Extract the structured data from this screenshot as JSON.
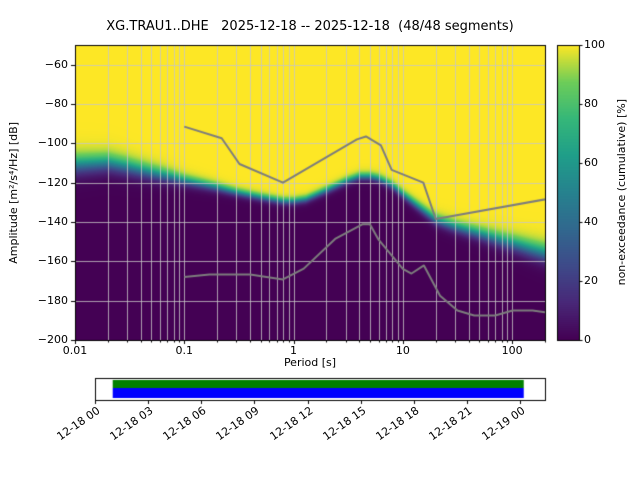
{
  "chart_data": {
    "type": "heatmap",
    "title": "XG.TRAU1..DHE   2025-12-18 -- 2025-12-18  (48/48 segments)",
    "xlabel": "Period [s]",
    "ylabel": "Amplitude [m²/s⁴/Hz] [dB]",
    "colorbar_label": "non-exceedance (cumulative) [%]",
    "x_scale": "log",
    "xlim": [
      0.01,
      200
    ],
    "ylim": [
      -200,
      -50
    ],
    "grid": true,
    "grid_color": "#c6c6c6",
    "background": "#ffffff",
    "x_ticks": {
      "values": [
        0.01,
        0.1,
        1,
        10,
        100
      ],
      "labels": [
        "0.01",
        "0.1",
        "1",
        "10",
        "100"
      ]
    },
    "y_ticks": {
      "values": [
        -60,
        -80,
        -100,
        -120,
        -140,
        -160,
        -180,
        -200
      ],
      "labels": [
        "−60",
        "−80",
        "−100",
        "−120",
        "−140",
        "−160",
        "−180",
        "−200"
      ]
    },
    "colorbar_ticks": {
      "values": [
        0,
        20,
        40,
        60,
        80,
        100
      ],
      "labels": [
        "0",
        "20",
        "40",
        "60",
        "80",
        "100"
      ]
    },
    "colormap": "viridis",
    "colormap_stops": [
      [
        0.0,
        68,
        1,
        84
      ],
      [
        0.125,
        72,
        40,
        120
      ],
      [
        0.25,
        62,
        74,
        137
      ],
      [
        0.375,
        49,
        104,
        142
      ],
      [
        0.5,
        38,
        130,
        142
      ],
      [
        0.625,
        31,
        158,
        137
      ],
      [
        0.75,
        53,
        183,
        121
      ],
      [
        0.875,
        109,
        205,
        89
      ],
      [
        1.0,
        253,
        231,
        37
      ]
    ],
    "cumulative_median_curve": {
      "period_s": [
        0.01,
        0.02,
        0.03,
        0.05,
        0.08,
        0.1,
        0.15,
        0.2,
        0.3,
        0.5,
        0.8,
        1.0,
        1.3,
        2,
        3,
        4,
        5,
        6,
        8,
        10,
        13,
        20,
        30,
        50,
        80,
        100,
        150,
        200
      ],
      "db": [
        -111,
        -110,
        -112,
        -115,
        -117.5,
        -119,
        -121,
        -122.5,
        -125,
        -127.5,
        -129.5,
        -129.5,
        -128.5,
        -124,
        -119.5,
        -117,
        -117,
        -118,
        -121.5,
        -126,
        -131,
        -139,
        -142.5,
        -146,
        -149.5,
        -151,
        -154,
        -156
      ]
    },
    "transition_sigma_db": {
      "period_s": [
        0.01,
        0.03,
        0.06,
        0.1,
        0.3,
        1,
        5,
        10,
        20,
        50,
        100,
        200
      ],
      "sigma": [
        2.8,
        2.4,
        2.0,
        1.5,
        1.1,
        1.0,
        1.1,
        1.2,
        1.5,
        1.8,
        2.2,
        2.6
      ]
    },
    "noise_models": {
      "color": "#7d7d7d",
      "line_width": 2,
      "nhnm": {
        "period_s": [
          0.1,
          0.22,
          0.32,
          0.8,
          3.8,
          4.6,
          6.3,
          7.9,
          15.4,
          20.0,
          354.8
        ],
        "db": [
          -91.5,
          -97.4,
          -110.5,
          -120.0,
          -98.0,
          -96.5,
          -101.0,
          -113.5,
          -120.0,
          -138.5,
          -126.0
        ]
      },
      "nlnm": {
        "period_s": [
          0.1,
          0.17,
          0.4,
          0.8,
          1.24,
          2.4,
          4.3,
          5.0,
          6.0,
          10.0,
          12.0,
          15.6,
          21.9,
          31.6,
          45.0,
          70.0,
          101.0,
          154.0,
          328.0
        ],
        "db": [
          -168.0,
          -166.7,
          -166.7,
          -169.2,
          -163.7,
          -148.6,
          -141.1,
          -141.1,
          -149.0,
          -163.8,
          -166.2,
          -162.1,
          -177.5,
          -185.0,
          -187.5,
          -187.5,
          -185.0,
          -185.0,
          -187.5
        ]
      }
    },
    "coverage_bar": {
      "tick_labels": [
        "12-18 00",
        "12-18 03",
        "12-18 06",
        "12-18 09",
        "12-18 12",
        "12-18 15",
        "12-18 18",
        "12-18 21",
        "12-19 00"
      ],
      "tick_hours": [
        0,
        3,
        6,
        9,
        12,
        15,
        18,
        21,
        24
      ],
      "axis_span_hours": 25.4,
      "data_start_hour": 1.0,
      "data_end_hour": 24.2,
      "processed_color": "#008000",
      "data_color": "#0000ff",
      "box_color": "#ffffff",
      "border_color": "#000000"
    }
  }
}
